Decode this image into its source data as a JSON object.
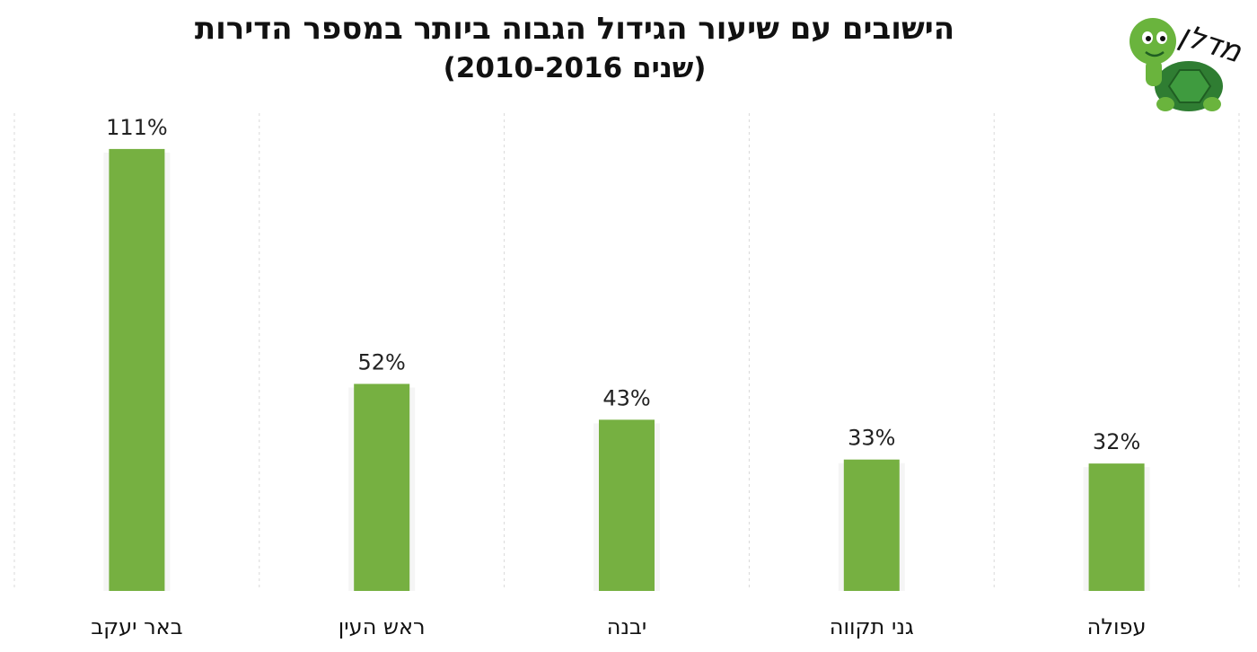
{
  "title_line1": "הישובים עם שיעור הגידול הגבוה ביותר במספר הדירות",
  "title_line2": "(שנים 2010-2016)",
  "logo_text": "מדלן",
  "colors": {
    "bar": "#76b041",
    "grid": "#d9d9d9",
    "logo_green": "#6ab43d",
    "logo_shell": "#2f7d32"
  },
  "chart_data": {
    "type": "bar",
    "title": "הישובים עם שיעור הגידול הגבוה ביותר במספר הדירות (שנים 2010-2016)",
    "xlabel": "",
    "ylabel": "",
    "ylim": [
      0,
      120
    ],
    "grid": "vertical dashed separators",
    "categories": [
      "באר יעקב",
      "ראש העין",
      "יבנה",
      "גני תקווה",
      "עפולה"
    ],
    "values": [
      111,
      52,
      43,
      33,
      32
    ],
    "value_labels": [
      "111%",
      "52%",
      "43%",
      "33%",
      "32%"
    ]
  }
}
